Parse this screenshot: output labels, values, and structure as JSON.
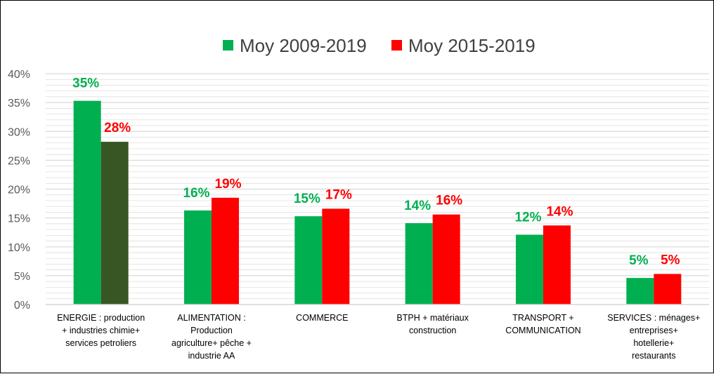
{
  "chart_data": {
    "type": "bar",
    "title": "",
    "xlabel": "",
    "ylabel": "",
    "ylim": [
      0,
      40
    ],
    "yticks": [
      0,
      5,
      10,
      15,
      20,
      25,
      30,
      35,
      40
    ],
    "ytick_labels": [
      "0%",
      "5%",
      "10%",
      "15%",
      "20%",
      "25%",
      "30%",
      "35%",
      "40%"
    ],
    "grid": true,
    "legend_position": "top-center",
    "categories": [
      [
        "ENERGIE : production",
        "+ industries chimie+",
        "services petroliers"
      ],
      [
        "ALIMENTATION :",
        "Production",
        "agriculture+ pêche +",
        "industrie AA"
      ],
      [
        "COMMERCE"
      ],
      [
        "BTPH + matériaux",
        "construction"
      ],
      [
        "TRANSPORT +",
        "COMMUNICATION"
      ],
      [
        "SERVICES : ménages+",
        "entreprises+",
        "hotellerie+",
        "restaurants"
      ]
    ],
    "series": [
      {
        "name": "Moy 2009-2019",
        "color": "#00B050",
        "values": [
          35.3,
          16.3,
          15.3,
          14.1,
          12.1,
          4.6
        ],
        "labels": [
          "35%",
          "16%",
          "15%",
          "14%",
          "12%",
          "5%"
        ]
      },
      {
        "name": "Moy 2015-2019",
        "color": "#FF0000",
        "point_colors": [
          "#375623",
          null,
          null,
          null,
          null,
          null
        ],
        "values": [
          28.2,
          18.5,
          16.6,
          15.6,
          13.7,
          5.3
        ],
        "labels": [
          "28%",
          "19%",
          "17%",
          "16%",
          "14%",
          "5%"
        ]
      }
    ],
    "axis_color": "#D9D9D9",
    "grid_color": "#D9D9D9"
  }
}
